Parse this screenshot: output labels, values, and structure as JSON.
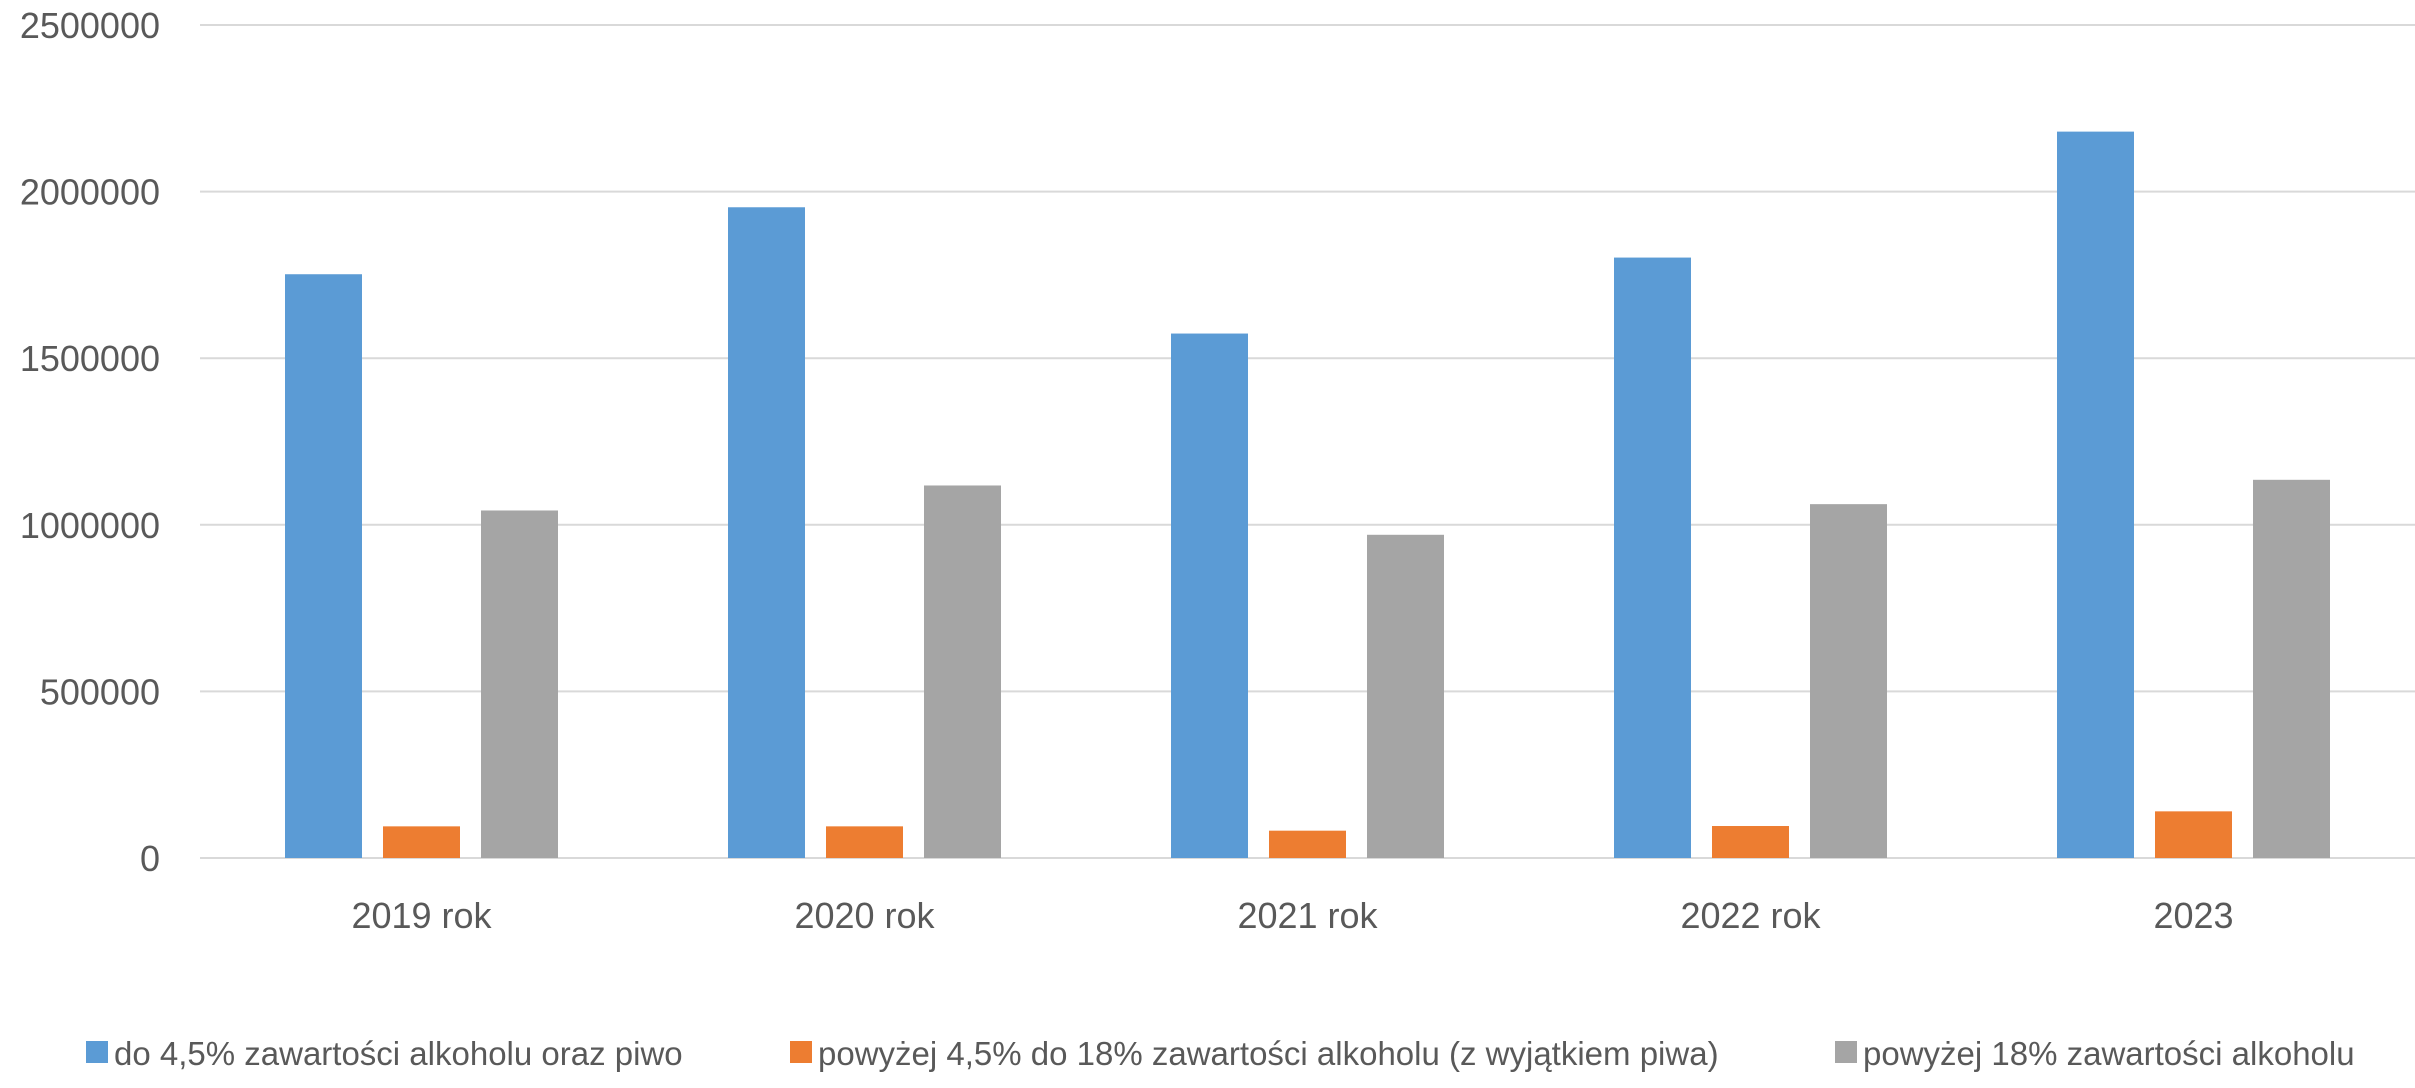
{
  "chart_data": {
    "type": "bar",
    "title": "",
    "xlabel": "",
    "ylabel": "",
    "categories": [
      "2019 rok",
      "2020 rok",
      "2021 rok",
      "2022 rok",
      "2023"
    ],
    "series": [
      {
        "name": "do 4,5% zawartości alkoholu oraz piwo",
        "color": "#5B9BD5",
        "values": [
          1752000,
          1953000,
          1574000,
          1802000,
          2180000
        ]
      },
      {
        "name": "powyżej 4,5% do 18% zawartości alkoholu (z wyjątkiem piwa)",
        "color": "#ED7D31",
        "values": [
          95000,
          95000,
          82000,
          96000,
          140000
        ]
      },
      {
        "name": "powyżej 18% zawartości alkoholu",
        "color": "#A5A5A5",
        "values": [
          1043000,
          1118000,
          970000,
          1062000,
          1135000
        ]
      }
    ],
    "ylim": [
      0,
      2500000
    ],
    "yticks": [
      "0",
      "500000",
      "1000000",
      "1500000",
      "2000000",
      "2500000"
    ],
    "grid": true,
    "legend_position": "bottom"
  }
}
